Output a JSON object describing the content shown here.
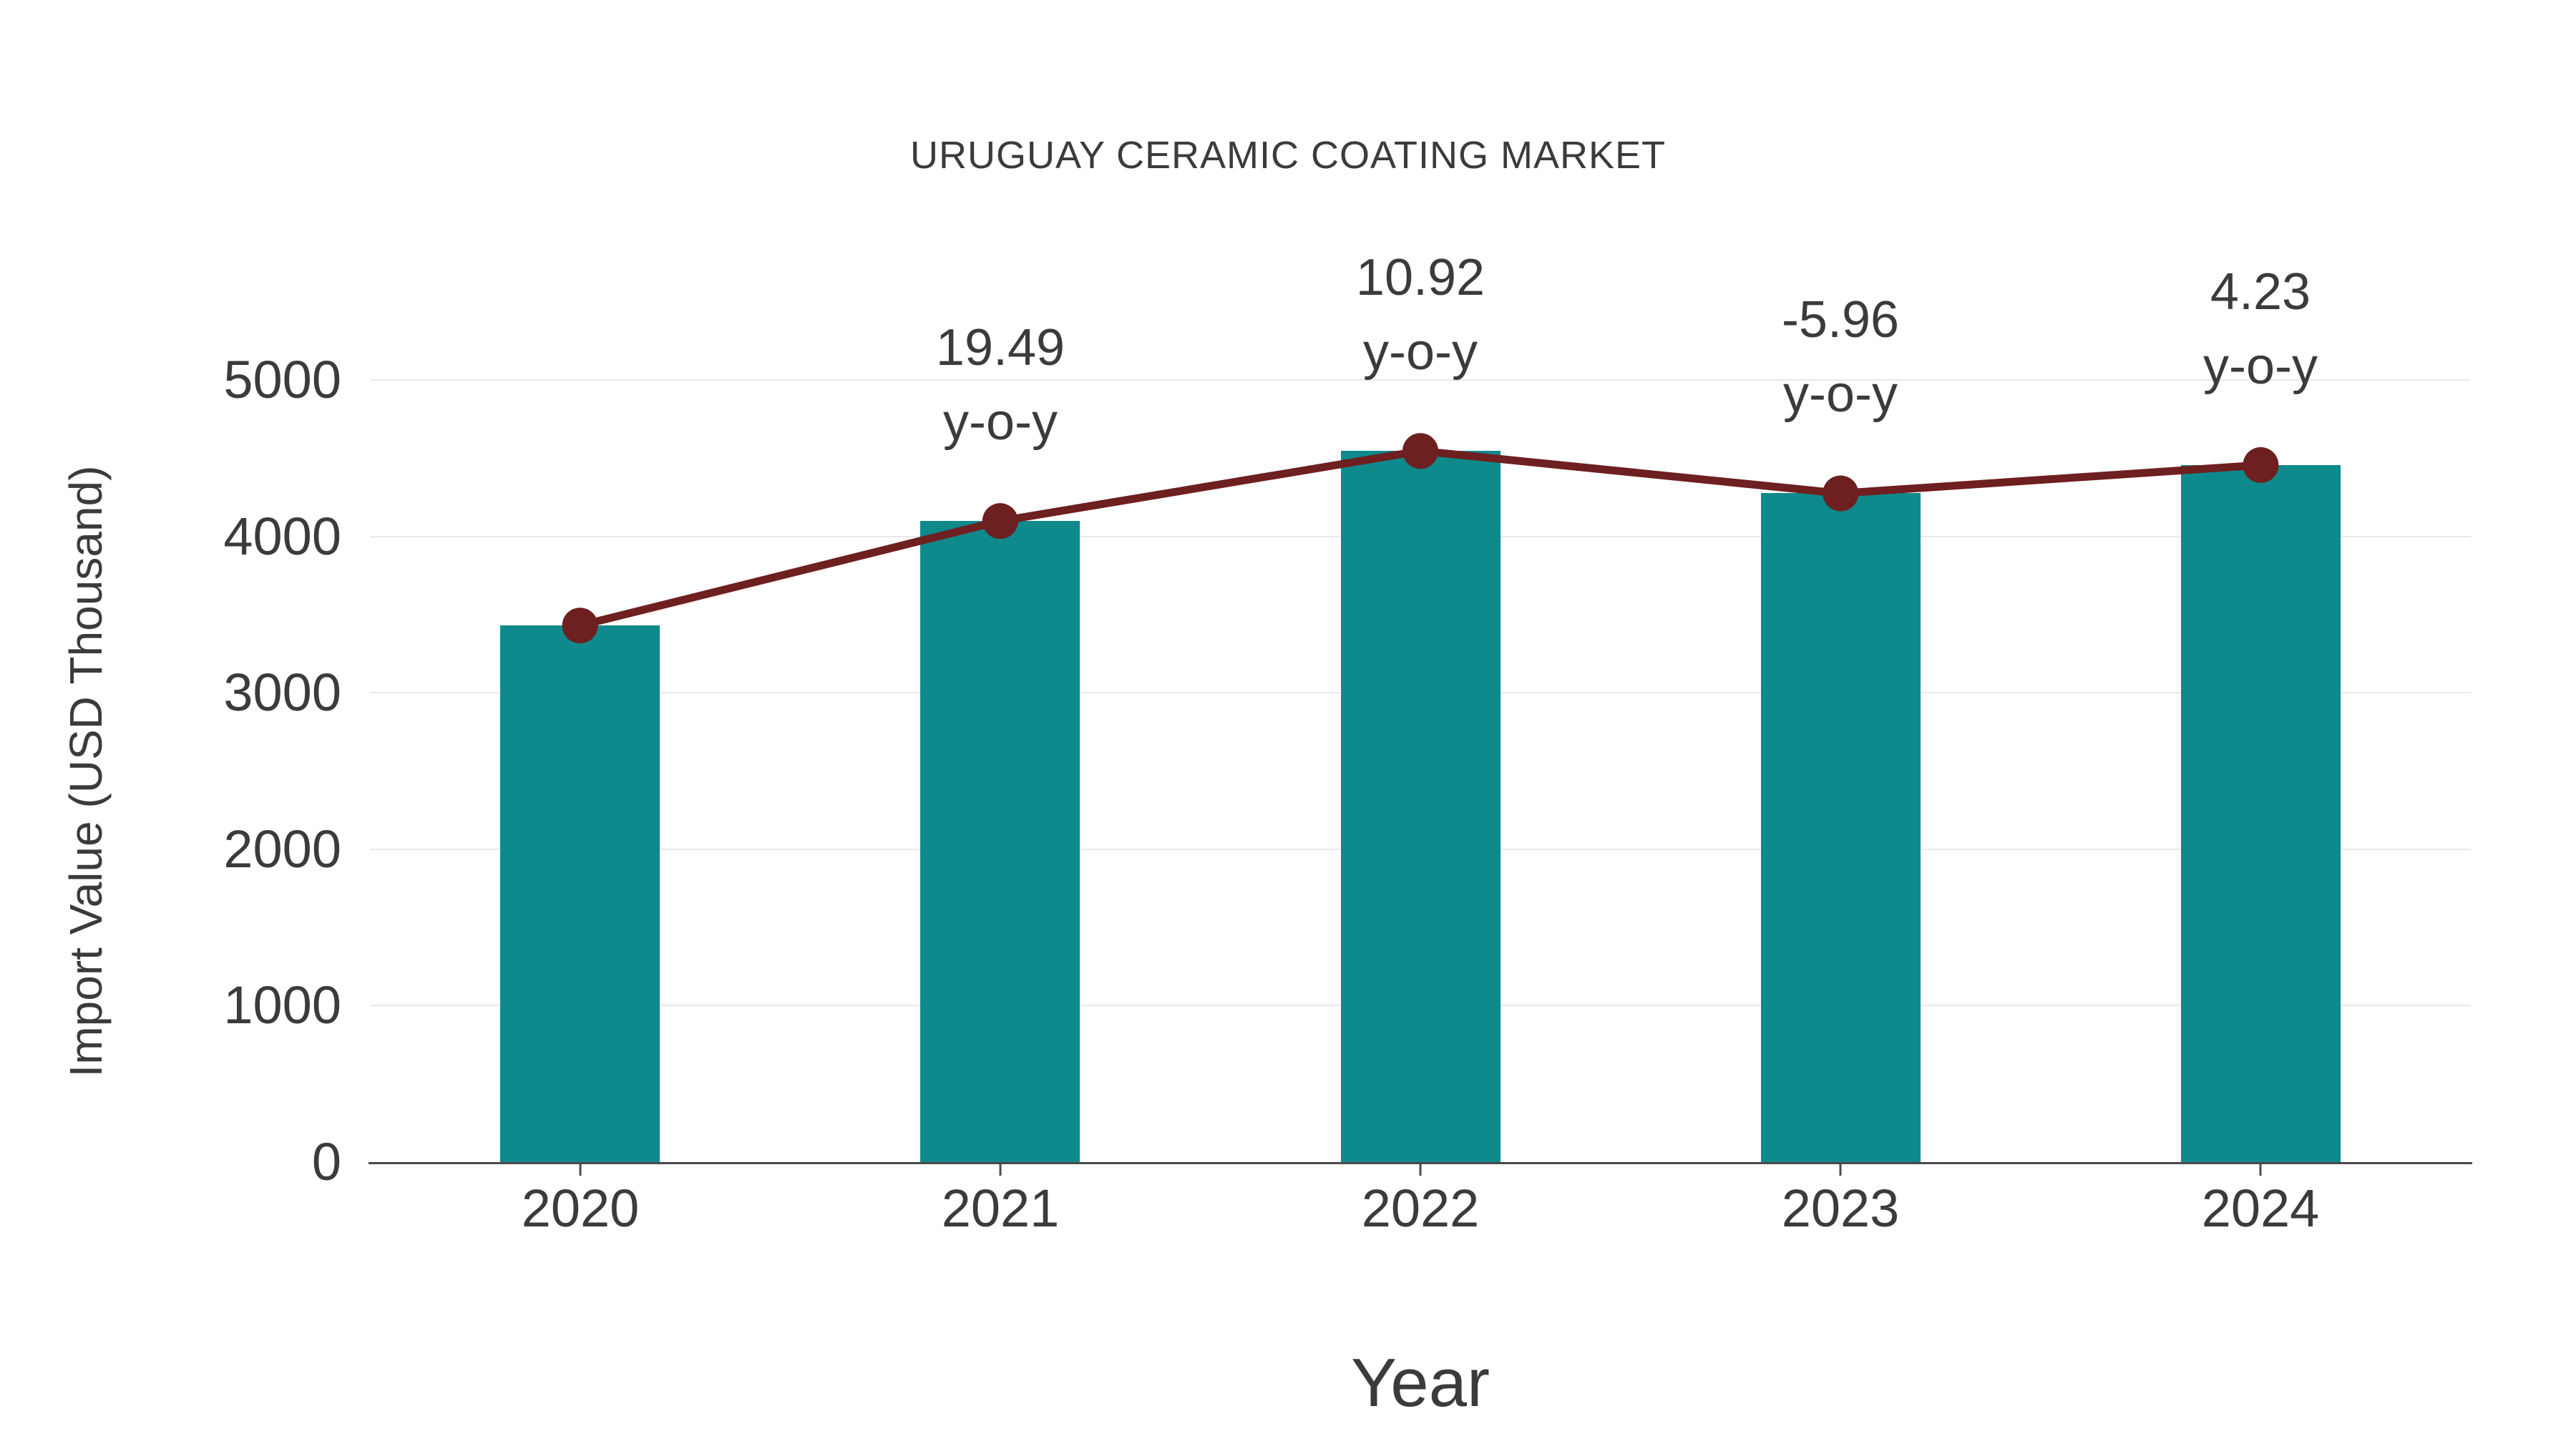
{
  "chart_data": {
    "type": "bar",
    "title": "URUGUAY CERAMIC COATING MARKET",
    "xlabel": "Year",
    "ylabel": "Import Value (USD Thousand)",
    "categories": [
      "2020",
      "2021",
      "2022",
      "2023",
      "2024"
    ],
    "series": [
      {
        "name": "Import Value bars",
        "type": "bar",
        "values": [
          3430,
          4098,
          4546,
          4275,
          4456
        ]
      },
      {
        "name": "Import Value trend line",
        "type": "line",
        "values": [
          3430,
          4098,
          4546,
          4275,
          4456
        ]
      }
    ],
    "annotations": [
      {
        "category": "2021",
        "value_line": "19.49",
        "unit_line": "y-o-y"
      },
      {
        "category": "2022",
        "value_line": "10.92",
        "unit_line": "y-o-y"
      },
      {
        "category": "2023",
        "value_line": "-5.96",
        "unit_line": "y-o-y"
      },
      {
        "category": "2024",
        "value_line": "4.23",
        "unit_line": "y-o-y"
      }
    ],
    "ylim": [
      0,
      5000
    ],
    "yticks": [
      0,
      1000,
      2000,
      3000,
      4000,
      5000
    ],
    "grid": true,
    "legend_position": "none"
  },
  "colors": {
    "bar": "#0e8a8c",
    "line": "#6e1f1f",
    "marker": "#6e1f1f",
    "grid": "#e9e9e9",
    "axis": "#4a4a4a",
    "text": "#3b3b3b",
    "background": "#ffffff"
  }
}
